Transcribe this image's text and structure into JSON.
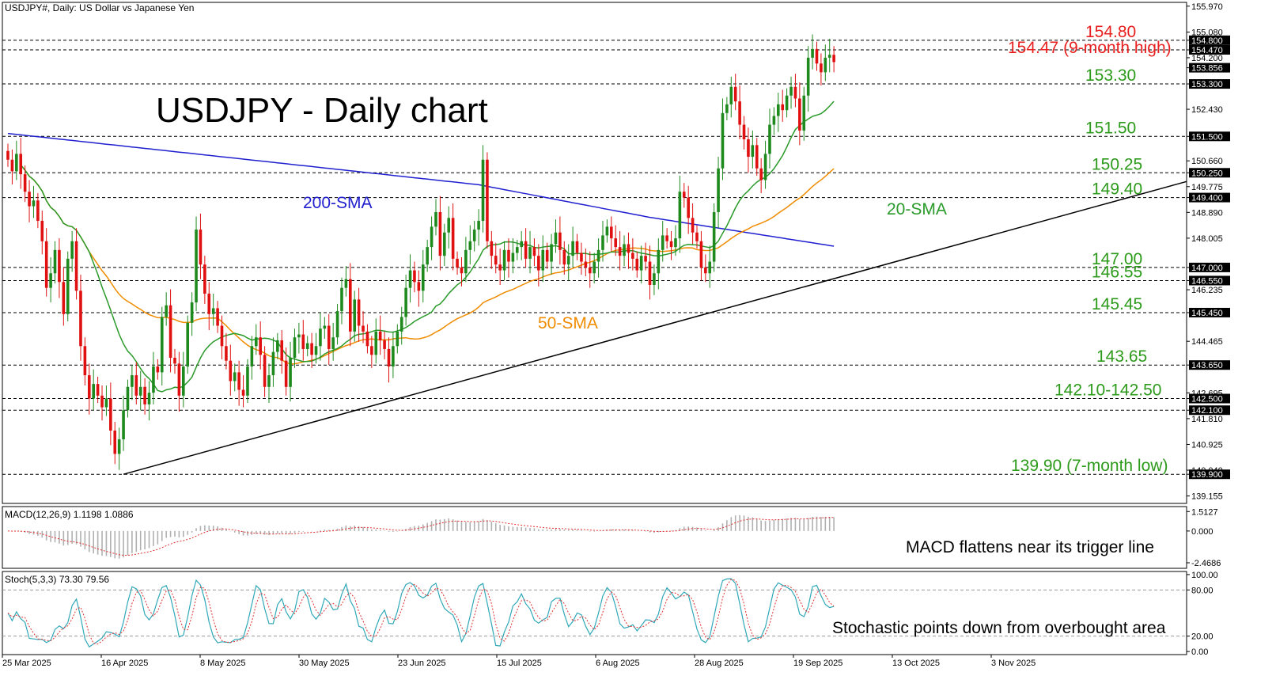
{
  "header": {
    "symbol_line": "USDJPY#, Daily:  US Dollar vs Japanese Yen",
    "title": "USDJPY - Daily chart"
  },
  "colors": {
    "bull": "#1e8a1e",
    "bear": "#e01010",
    "sma20": "#2a9a2a",
    "sma50": "#f08c00",
    "sma200": "#2020d0",
    "trendline": "#000000",
    "level_green": "#2c9a1a",
    "level_red": "#e82020",
    "macd_signal": "#e03030",
    "macd_hist": "#b0b0b0",
    "stoch_main": "#30a8b8",
    "stoch_signal": "#e03030"
  },
  "price_axis": {
    "ticks": [
      "155.970",
      "155.080",
      "154.800",
      "154.470",
      "154.200",
      "153.856",
      "153.300",
      "152.430",
      "151.500",
      "150.660",
      "150.250",
      "149.775",
      "149.400",
      "148.890",
      "148.005",
      "147.000",
      "146.550",
      "146.235",
      "145.450",
      "144.465",
      "143.650",
      "142.695",
      "142.500",
      "142.100",
      "141.810",
      "140.925",
      "140.040",
      "139.900",
      "139.155"
    ],
    "highlighted": [
      "154.800",
      "154.470",
      "153.856",
      "153.300",
      "151.500",
      "150.250",
      "149.400",
      "147.000",
      "146.550",
      "145.450",
      "143.650",
      "142.500",
      "142.100",
      "139.900"
    ]
  },
  "levels": [
    {
      "value": 154.8,
      "label": "154.80",
      "color": "red"
    },
    {
      "value": 154.47,
      "label": "154.47 (9-month high)",
      "color": "red"
    },
    {
      "value": 153.3,
      "label": "153.30",
      "color": "green"
    },
    {
      "value": 151.5,
      "label": "151.50",
      "color": "green"
    },
    {
      "value": 150.25,
      "label": "150.25",
      "color": "green"
    },
    {
      "value": 149.4,
      "label": "149.40",
      "color": "green"
    },
    {
      "value": 147.0,
      "label": "147.00",
      "color": "green"
    },
    {
      "value": 146.55,
      "label": "146.55",
      "color": "green"
    },
    {
      "value": 145.45,
      "label": "145.45",
      "color": "green"
    },
    {
      "value": 143.65,
      "label": "143.65",
      "color": "green"
    },
    {
      "value": 142.5,
      "label": "142.10-142.50",
      "color": "green"
    },
    {
      "value": 142.1,
      "label": "",
      "color": "green"
    },
    {
      "value": 139.9,
      "label": "139.90 (7-month low)",
      "color": "green"
    }
  ],
  "annotations": {
    "sma200": "200-SMA",
    "sma50": "50-SMA",
    "sma20": "20-SMA",
    "macd_note": "MACD flattens near its trigger line",
    "stoch_note": "Stochastic points down from overbought area"
  },
  "chart_data": {
    "type": "candlestick",
    "x_labels": [
      "25 Mar 2025",
      "16 Apr 2025",
      "8 May 2025",
      "30 May 2025",
      "23 Jun 2025",
      "15 Jul 2025",
      "6 Aug 2025",
      "28 Aug 2025",
      "19 Sep 2025",
      "13 Oct 2025",
      "3 Nov 2025"
    ],
    "ylim": [
      138.9,
      156.1
    ],
    "closes": [
      150.7,
      150.3,
      150.9,
      150.2,
      149.6,
      149.1,
      149.3,
      148.6,
      147.9,
      146.3,
      146.8,
      147.6,
      146.5,
      145.4,
      147.3,
      147.9,
      146.2,
      144.3,
      143.3,
      142.5,
      143.0,
      142.6,
      142.2,
      142.5,
      141.4,
      140.6,
      141.1,
      142.1,
      142.9,
      143.3,
      142.6,
      142.9,
      142.3,
      142.7,
      143.6,
      143.4,
      145.3,
      145.7,
      143.9,
      143.7,
      142.6,
      143.6,
      145.1,
      145.8,
      148.3,
      147.1,
      146.1,
      145.4,
      145.6,
      145.0,
      144.3,
      143.8,
      143.1,
      143.4,
      142.8,
      142.6,
      143.6,
      144.3,
      144.6,
      144.0,
      142.9,
      143.3,
      144.1,
      144.5,
      143.8,
      142.9,
      143.9,
      144.6,
      144.7,
      144.2,
      144.4,
      144.0,
      144.3,
      144.9,
      145.0,
      144.2,
      144.6,
      145.5,
      146.3,
      146.6,
      144.8,
      145.9,
      145.0,
      144.8,
      144.3,
      144.0,
      144.8,
      144.5,
      144.2,
      143.6,
      144.3,
      144.8,
      145.3,
      146.3,
      146.9,
      146.5,
      146.2,
      147.1,
      147.7,
      148.4,
      148.9,
      147.4,
      148.2,
      148.7,
      147.3,
      147.0,
      146.8,
      147.6,
      147.9,
      148.3,
      148.6,
      150.7,
      147.9,
      147.4,
      147.1,
      146.9,
      147.6,
      147.2,
      147.5,
      147.7,
      147.9,
      147.3,
      147.7,
      147.4,
      146.9,
      147.6,
      147.2,
      147.8,
      148.2,
      147.6,
      147.1,
      147.4,
      147.9,
      147.5,
      147.2,
      147.0,
      146.8,
      147.2,
      147.6,
      148.1,
      148.4,
      148.0,
      147.7,
      147.4,
      147.8,
      147.5,
      147.3,
      146.9,
      147.4,
      147.2,
      146.4,
      146.8,
      147.6,
      148.1,
      147.9,
      147.7,
      148.0,
      149.6,
      149.4,
      148.7,
      148.2,
      147.9,
      147.0,
      146.8,
      147.2,
      148.9,
      150.4,
      152.3,
      152.6,
      153.2,
      152.7,
      151.9,
      151.4,
      150.8,
      151.2,
      150.4,
      150.0,
      150.9,
      151.9,
      152.2,
      152.6,
      152.4,
      152.9,
      153.2,
      152.8,
      151.7,
      152.9,
      154.2,
      154.5,
      154.0,
      153.7,
      154.2,
      154.3,
      154.05
    ],
    "ranges": {
      "sma20": [
        147.0,
        154.0
      ],
      "sma50": [
        143.0,
        152.0
      ],
      "sma200": [
        145.0,
        152.0
      ]
    },
    "macd": {
      "label": "MACD(12,26,9) 1.1198 1.0886",
      "ticks": [
        "1.5127",
        "0.000",
        "-2.4686"
      ],
      "ylim": [
        -2.9,
        1.9
      ]
    },
    "stochastic": {
      "label": "Stoch(5,3,3) 73.30 79.56",
      "ticks": [
        "100.00",
        "80.00",
        "20.00",
        "0.00"
      ],
      "ylim": [
        -4,
        104
      ]
    }
  }
}
